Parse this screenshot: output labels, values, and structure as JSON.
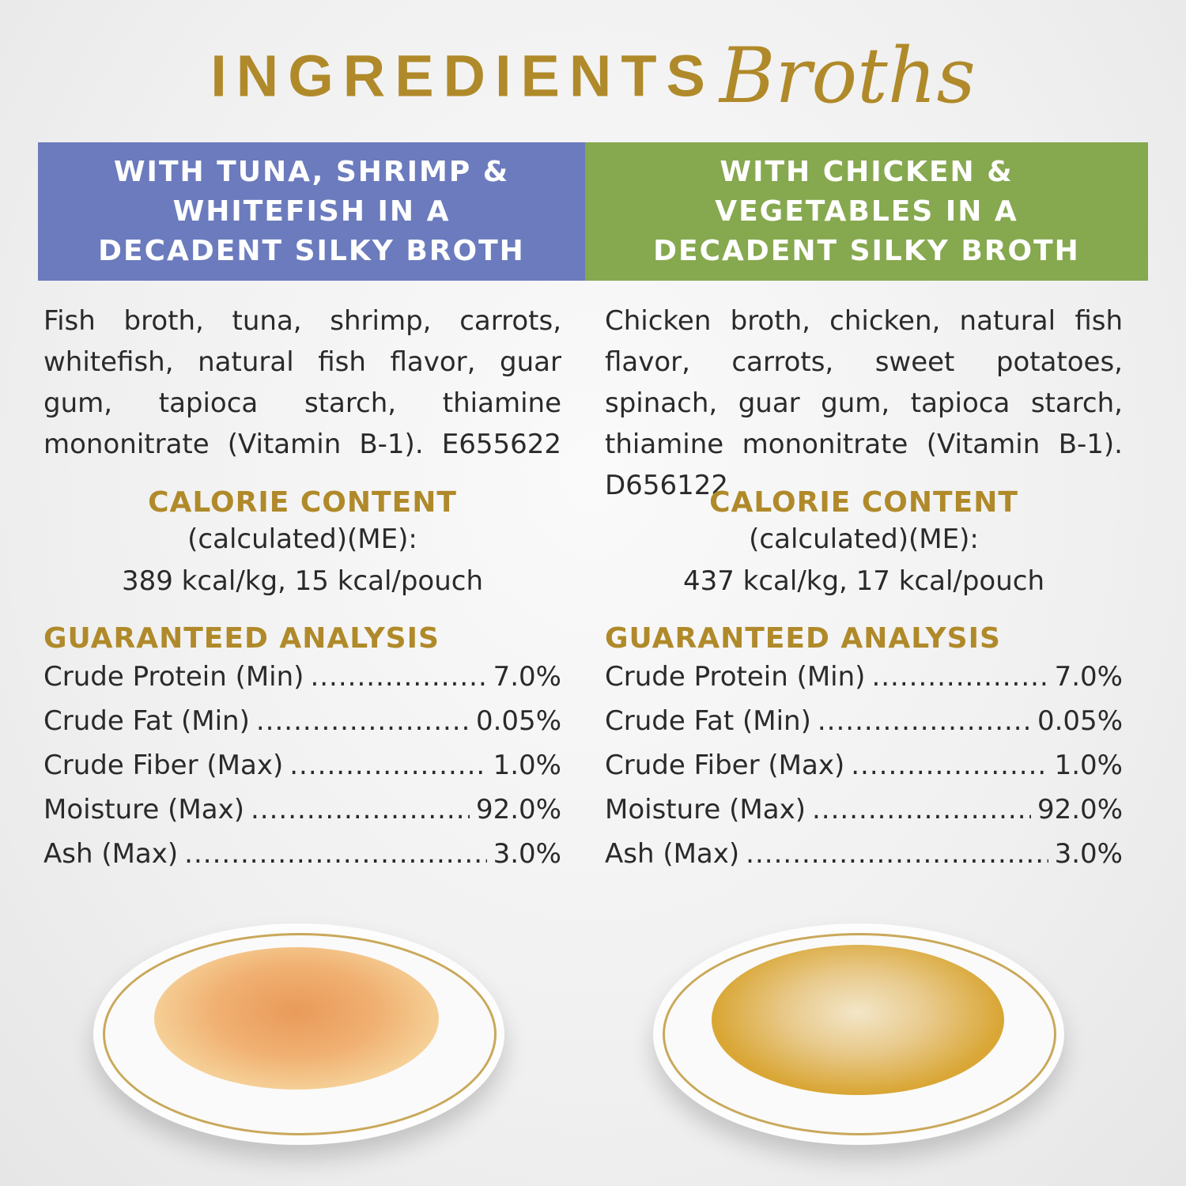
{
  "title": {
    "main": "INGREDIENTS",
    "script": "Broths"
  },
  "colors": {
    "gold": "#b08a2a",
    "left_banner": "#6b7bbd",
    "right_banner": "#86a84f"
  },
  "products": [
    {
      "banner": "WITH TUNA, SHRIMP & WHITEFISH IN A DECADENT SILKY BROTH",
      "ingredients": "Fish broth, tuna, shrimp, carrots, whitefish, natural fish flavor, guar gum, tapioca starch, thiamine mononitrate (Vitamin B-1). E655622",
      "calorie_heading": "CALORIE CONTENT",
      "calorie_basis": "(calculated)(ME):",
      "calorie_values": "389 kcal/kg, 15 kcal/pouch",
      "analysis_heading": "GUARANTEED ANALYSIS",
      "analysis": [
        {
          "label": "Crude Protein (Min)",
          "value": "7.0%"
        },
        {
          "label": "Crude Fat (Min)",
          "value": "0.05%"
        },
        {
          "label": "Crude Fiber (Max)",
          "value": "1.0%"
        },
        {
          "label": "Moisture (Max)",
          "value": "92.0%"
        },
        {
          "label": "Ash (Max)",
          "value": "3.0%"
        }
      ]
    },
    {
      "banner": "WITH CHICKEN & VEGETABLES IN A DECADENT SILKY BROTH",
      "ingredients": "Chicken broth, chicken, natural fish flavor, carrots, sweet potatoes, spinach, guar gum, tapioca starch, thiamine mononitrate (Vitamin B-1). D656122",
      "calorie_heading": "CALORIE CONTENT",
      "calorie_basis": "(calculated)(ME):",
      "calorie_values": "437 kcal/kg, 17 kcal/pouch",
      "analysis_heading": "GUARANTEED ANALYSIS",
      "analysis": [
        {
          "label": "Crude Protein (Min)",
          "value": "7.0%"
        },
        {
          "label": "Crude Fat (Min)",
          "value": "0.05%"
        },
        {
          "label": "Crude Fiber (Max)",
          "value": "1.0%"
        },
        {
          "label": "Moisture (Max)",
          "value": "92.0%"
        },
        {
          "label": "Ash (Max)",
          "value": "3.0%"
        }
      ]
    }
  ]
}
